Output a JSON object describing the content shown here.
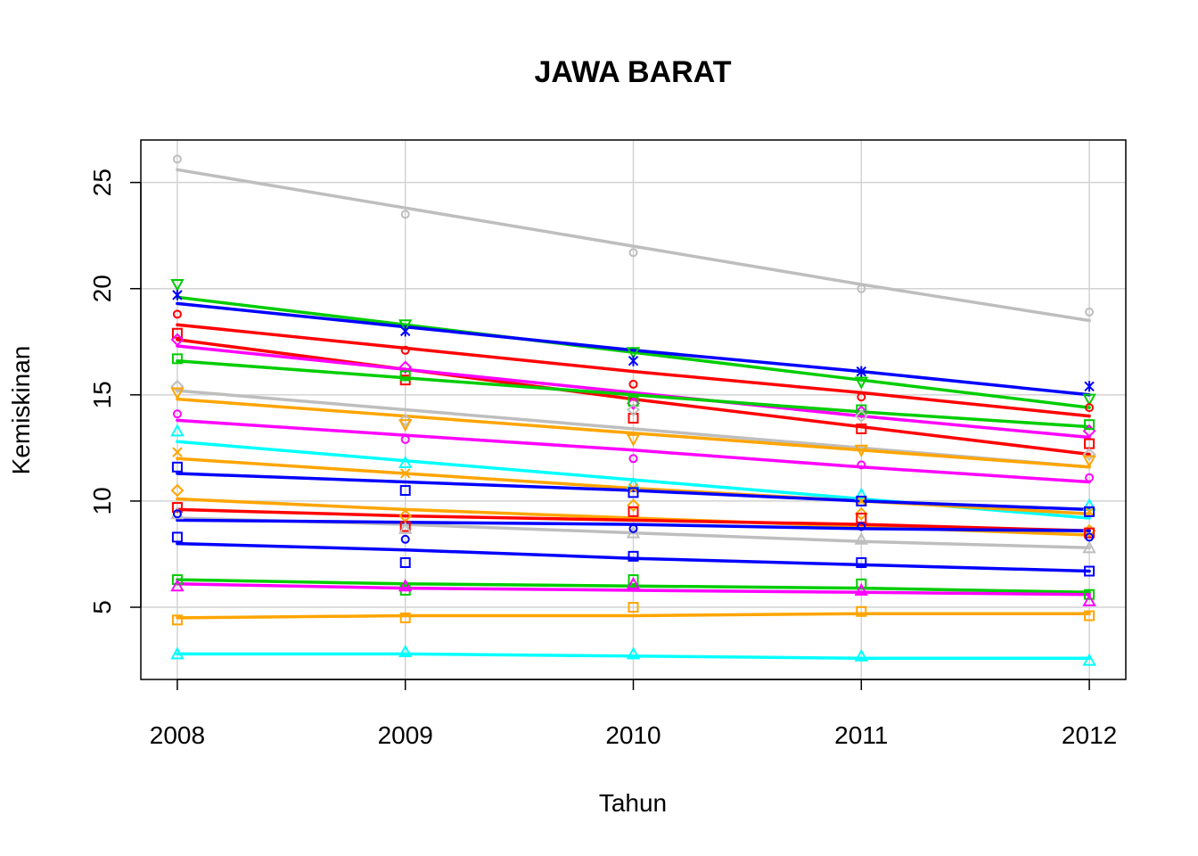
{
  "chart_data": {
    "type": "line",
    "title": "JAWA BARAT",
    "xlabel": "Tahun",
    "ylabel": "Kemiskinan",
    "x": [
      2008,
      2009,
      2010,
      2011,
      2012
    ],
    "x_ticks": [
      "2008",
      "2009",
      "2010",
      "2011",
      "2012"
    ],
    "y_ticks": [
      "5",
      "10",
      "15",
      "20",
      "25"
    ],
    "xlim": [
      2007.84,
      2012.16
    ],
    "ylim": [
      1.6,
      27
    ],
    "grid": true,
    "series": [
      {
        "color": "#BEBEBE",
        "marker": "circle",
        "values": [
          26.1,
          23.5,
          21.7,
          20.0,
          18.9
        ],
        "trend": [
          25.6,
          23.8,
          22.0,
          20.2,
          18.5
        ]
      },
      {
        "color": "#00CD00",
        "marker": "triangle-down",
        "values": [
          20.2,
          18.3,
          17.0,
          15.6,
          14.8
        ],
        "trend": [
          19.6,
          18.3,
          17.0,
          15.7,
          14.4
        ]
      },
      {
        "color": "#0000FF",
        "marker": "asterisk",
        "values": [
          19.7,
          18.0,
          16.6,
          16.1,
          15.4
        ],
        "trend": [
          19.3,
          18.2,
          17.1,
          16.1,
          15.0
        ]
      },
      {
        "color": "#FF0000",
        "marker": "circle",
        "values": [
          18.8,
          17.1,
          15.5,
          14.9,
          14.4
        ],
        "trend": [
          18.3,
          17.2,
          16.1,
          15.1,
          14.0
        ]
      },
      {
        "color": "#FF0000",
        "marker": "square",
        "values": [
          17.9,
          15.7,
          13.9,
          13.4,
          12.7
        ],
        "trend": [
          17.6,
          16.2,
          14.8,
          13.5,
          12.2
        ]
      },
      {
        "color": "#FF00FF",
        "marker": "diamond",
        "values": [
          17.6,
          16.3,
          14.6,
          14.2,
          13.3
        ],
        "trend": [
          17.3,
          16.2,
          15.1,
          14.0,
          13.0
        ]
      },
      {
        "color": "#00CD00",
        "marker": "square",
        "values": [
          16.7,
          15.9,
          14.7,
          14.3,
          13.6
        ],
        "trend": [
          16.6,
          15.8,
          15.0,
          14.2,
          13.5
        ]
      },
      {
        "color": "#BEBEBE",
        "marker": "diamond",
        "values": [
          15.4,
          13.8,
          14.3,
          14.0,
          12.2
        ],
        "trend": [
          15.2,
          14.3,
          13.4,
          12.5,
          11.6
        ]
      },
      {
        "color": "#FFA500",
        "marker": "triangle-down",
        "values": [
          15.1,
          13.6,
          12.9,
          12.4,
          11.9
        ],
        "trend": [
          14.8,
          14.0,
          13.2,
          12.4,
          11.6
        ]
      },
      {
        "color": "#FF00FF",
        "marker": "circle",
        "values": [
          14.1,
          12.9,
          12.0,
          11.7,
          11.1
        ],
        "trend": [
          13.8,
          13.1,
          12.4,
          11.6,
          10.9
        ]
      },
      {
        "color": "#00FFFF",
        "marker": "triangle",
        "values": [
          13.3,
          11.8,
          10.8,
          10.3,
          9.8
        ],
        "trend": [
          12.8,
          11.9,
          11.0,
          10.1,
          9.2
        ]
      },
      {
        "color": "#FFA500",
        "marker": "cross",
        "values": [
          12.3,
          11.3,
          10.6,
          10.0,
          9.5
        ],
        "trend": [
          12.0,
          11.3,
          10.6,
          10.0,
          9.4
        ]
      },
      {
        "color": "#0000FF",
        "marker": "square",
        "values": [
          11.6,
          10.5,
          10.4,
          10.0,
          9.5
        ],
        "trend": [
          11.3,
          10.9,
          10.5,
          10.0,
          9.6
        ]
      },
      {
        "color": "#FFA500",
        "marker": "diamond",
        "values": [
          10.5,
          9.3,
          9.8,
          9.4,
          8.6
        ],
        "trend": [
          10.1,
          9.6,
          9.2,
          8.8,
          8.4
        ]
      },
      {
        "color": "#FF0000",
        "marker": "square",
        "values": [
          9.7,
          8.8,
          9.5,
          9.2,
          8.5
        ],
        "trend": [
          9.6,
          9.3,
          9.1,
          8.9,
          8.6
        ]
      },
      {
        "color": "#BEBEBE",
        "marker": "triangle",
        "values": [
          9.4,
          8.7,
          8.5,
          8.2,
          7.8
        ],
        "trend": [
          9.2,
          8.9,
          8.5,
          8.1,
          7.8
        ]
      },
      {
        "color": "#0000FF",
        "marker": "circle",
        "values": [
          9.4,
          8.2,
          8.7,
          8.8,
          8.3
        ],
        "trend": [
          9.1,
          9.0,
          8.9,
          8.7,
          8.6
        ]
      },
      {
        "color": "#0000FF",
        "marker": "square",
        "values": [
          8.3,
          7.1,
          7.4,
          7.1,
          6.7
        ],
        "trend": [
          8.0,
          7.7,
          7.3,
          7.0,
          6.7
        ]
      },
      {
        "color": "#00CD00",
        "marker": "square",
        "values": [
          6.3,
          5.8,
          6.3,
          6.1,
          5.6
        ],
        "trend": [
          6.3,
          6.1,
          6.0,
          5.9,
          5.7
        ]
      },
      {
        "color": "#FF00FF",
        "marker": "triangle",
        "values": [
          6.0,
          6.0,
          6.1,
          5.8,
          5.3
        ],
        "trend": [
          6.1,
          5.9,
          5.8,
          5.7,
          5.6
        ]
      },
      {
        "color": "#FFA500",
        "marker": "square",
        "values": [
          4.4,
          4.5,
          5.0,
          4.8,
          4.6
        ],
        "trend": [
          4.5,
          4.6,
          4.6,
          4.7,
          4.7
        ]
      },
      {
        "color": "#00FFFF",
        "marker": "triangle",
        "values": [
          2.8,
          2.9,
          2.8,
          2.7,
          2.5
        ],
        "trend": [
          2.8,
          2.8,
          2.7,
          2.6,
          2.6
        ]
      }
    ]
  }
}
